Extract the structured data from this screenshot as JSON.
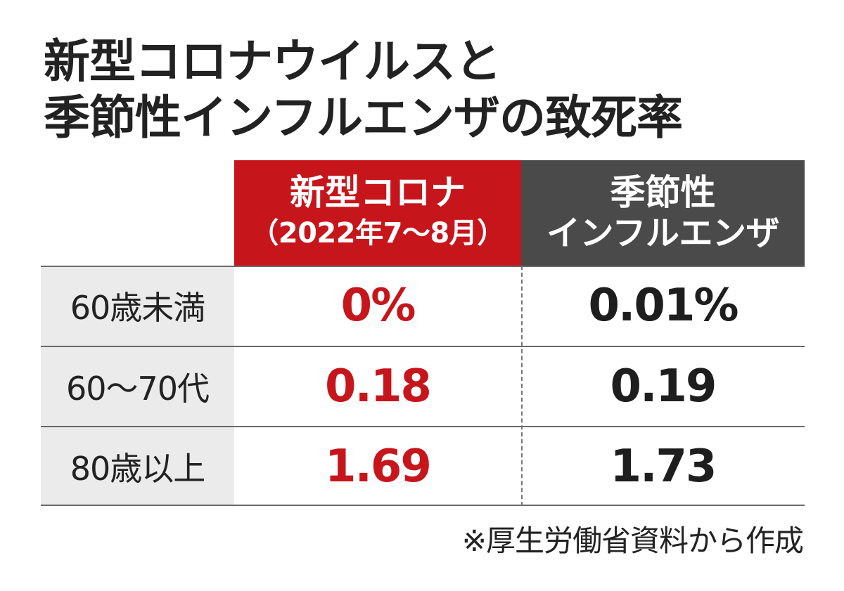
{
  "title": {
    "line1": "新型コロナウイルスと",
    "line2": "季節性インフルエンザの致死率"
  },
  "chart_data": {
    "type": "table",
    "columns": [
      {
        "name_line1": "新型コロナ",
        "name_line2": "（2022年7～8月）",
        "color": "#c6161c"
      },
      {
        "name_line1": "季節性",
        "name_line2": "インフルエンザ",
        "color": "#4a4a4a"
      }
    ],
    "rows": [
      {
        "label": "60歳未満",
        "values": [
          "0%",
          "0.01%"
        ]
      },
      {
        "label": "60～70代",
        "values": [
          "0.18",
          "0.19"
        ]
      },
      {
        "label": "80歳以上",
        "values": [
          "1.69",
          "1.73"
        ]
      }
    ]
  },
  "note": "※厚生労働省資料から作成"
}
